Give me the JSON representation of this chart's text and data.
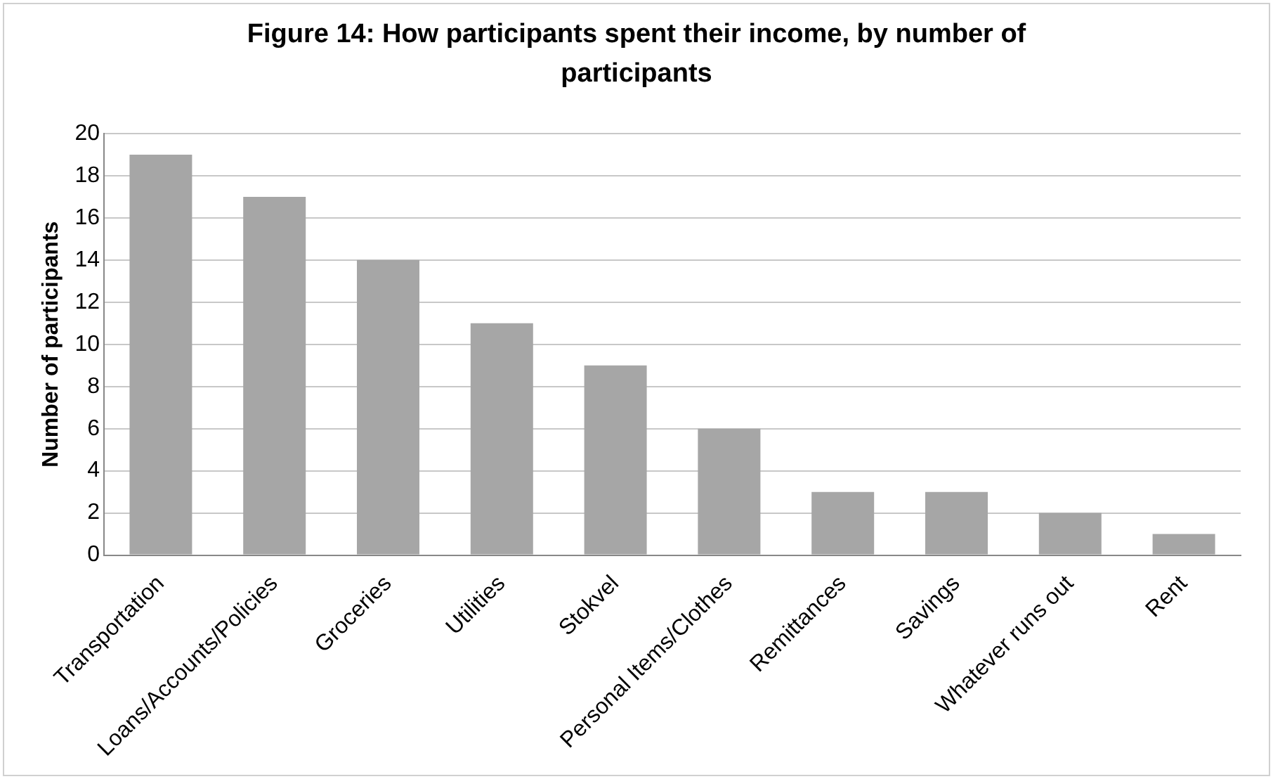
{
  "chart_data": {
    "type": "bar",
    "title": "Figure 14: How participants spent their income, by number of participants",
    "ylabel": "Number of participants",
    "categories": [
      "Transportation",
      "Loans/Accounts/Policies",
      "Groceries",
      "Utilities",
      "Stokvel",
      "Personal Items/Clothes",
      "Remittances",
      "Savings",
      "Whatever runs out",
      "Rent"
    ],
    "values": [
      19,
      17,
      14,
      11,
      9,
      6,
      3,
      3,
      2,
      1
    ],
    "color": "#a6a6a6",
    "ylim": [
      0,
      20
    ],
    "yticks": [
      0,
      2,
      4,
      6,
      8,
      10,
      12,
      14,
      16,
      18,
      20
    ],
    "grid": "y",
    "legend": false
  }
}
